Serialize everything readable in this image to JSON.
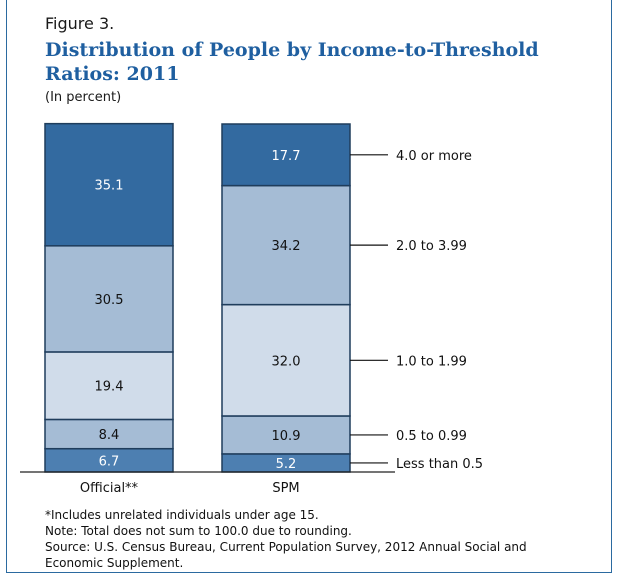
{
  "figure_label": "Figure 3.",
  "title_line1": "Distribution of People by Income-to-Threshold",
  "title_line2": "Ratios: 2011",
  "subtitle": "(In percent)",
  "notes": [
    "*Includes unrelated individuals under age 15.",
    "Note: Total does not sum to 100.0 due to rounding.",
    "Source: U.S. Census Bureau, Current  Population Survey, 2012 Annual Social and",
    "Economic Supplement."
  ],
  "colors": {
    "border": "#1f3d5c",
    "title": "#1f5fa0",
    "segments": [
      "#4d7fb1",
      "#a5bcd5",
      "#d0dcea",
      "#a5bcd5",
      "#336aa0"
    ]
  },
  "chart_data": {
    "type": "bar",
    "stacked": true,
    "categories": [
      "Official**",
      "SPM"
    ],
    "series": [
      {
        "name": "Less than 0.5",
        "values": [
          6.7,
          5.2
        ]
      },
      {
        "name": "0.5 to 0.99",
        "values": [
          8.4,
          10.9
        ]
      },
      {
        "name": "1.0 to 1.99",
        "values": [
          19.4,
          32.0
        ]
      },
      {
        "name": "2.0 to 3.99",
        "values": [
          30.5,
          34.2
        ]
      },
      {
        "name": "4.0 or more",
        "values": [
          35.1,
          17.7
        ]
      }
    ],
    "data_labels": [
      [
        "6.7",
        "8.4",
        "19.4",
        "30.5",
        "35.1"
      ],
      [
        "5.2",
        "10.9",
        "32.0",
        "34.2",
        "17.7"
      ]
    ],
    "legend_labels": [
      "Less than 0.5",
      "0.5 to 0.99",
      "1.0 to 1.99",
      "2.0 to 3.99",
      "4.0 or more"
    ],
    "ylim": [
      0,
      100
    ],
    "legend_position": "right"
  }
}
